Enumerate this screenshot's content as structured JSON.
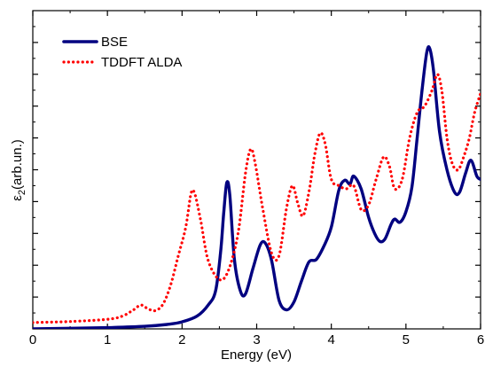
{
  "chart_data": {
    "type": "line",
    "xlabel": "Energy (eV)",
    "ylabel_symbol": "ε",
    "ylabel_subscript": "2",
    "ylabel_text": "(arb.un.)",
    "xlim": [
      0,
      6
    ],
    "ylim": [
      0,
      1
    ],
    "x_ticks": [
      0,
      1,
      2,
      3,
      4,
      5,
      6
    ],
    "x_tick_labels": [
      "0",
      "1",
      "2",
      "3",
      "4",
      "5",
      "6"
    ],
    "grid": false,
    "legend_position": "top-left",
    "series": [
      {
        "name": "BSE",
        "color": "#000080",
        "style": "solid",
        "points": [
          [
            0.0,
            0.0
          ],
          [
            0.5,
            0.002
          ],
          [
            1.0,
            0.004
          ],
          [
            1.5,
            0.008
          ],
          [
            1.8,
            0.014
          ],
          [
            2.0,
            0.022
          ],
          [
            2.2,
            0.04
          ],
          [
            2.35,
            0.075
          ],
          [
            2.45,
            0.12
          ],
          [
            2.52,
            0.25
          ],
          [
            2.56,
            0.37
          ],
          [
            2.6,
            0.46
          ],
          [
            2.64,
            0.42
          ],
          [
            2.7,
            0.22
          ],
          [
            2.78,
            0.12
          ],
          [
            2.85,
            0.11
          ],
          [
            2.95,
            0.19
          ],
          [
            3.05,
            0.265
          ],
          [
            3.12,
            0.268
          ],
          [
            3.2,
            0.215
          ],
          [
            3.3,
            0.09
          ],
          [
            3.4,
            0.06
          ],
          [
            3.5,
            0.085
          ],
          [
            3.6,
            0.15
          ],
          [
            3.7,
            0.21
          ],
          [
            3.8,
            0.218
          ],
          [
            3.9,
            0.26
          ],
          [
            4.0,
            0.32
          ],
          [
            4.1,
            0.435
          ],
          [
            4.18,
            0.467
          ],
          [
            4.25,
            0.455
          ],
          [
            4.3,
            0.48
          ],
          [
            4.4,
            0.44
          ],
          [
            4.5,
            0.35
          ],
          [
            4.58,
            0.3
          ],
          [
            4.65,
            0.275
          ],
          [
            4.72,
            0.283
          ],
          [
            4.8,
            0.328
          ],
          [
            4.85,
            0.345
          ],
          [
            4.92,
            0.335
          ],
          [
            5.0,
            0.368
          ],
          [
            5.08,
            0.446
          ],
          [
            5.15,
            0.6
          ],
          [
            5.22,
            0.76
          ],
          [
            5.28,
            0.87
          ],
          [
            5.32,
            0.88
          ],
          [
            5.37,
            0.81
          ],
          [
            5.45,
            0.62
          ],
          [
            5.55,
            0.5
          ],
          [
            5.65,
            0.43
          ],
          [
            5.72,
            0.43
          ],
          [
            5.8,
            0.49
          ],
          [
            5.87,
            0.53
          ],
          [
            5.95,
            0.48
          ],
          [
            6.0,
            0.47
          ]
        ]
      },
      {
        "name": "TDDFT ALDA",
        "color": "#ff0000",
        "style": "dotted",
        "points": [
          [
            0.0,
            0.02
          ],
          [
            0.5,
            0.023
          ],
          [
            1.0,
            0.03
          ],
          [
            1.2,
            0.04
          ],
          [
            1.35,
            0.06
          ],
          [
            1.45,
            0.075
          ],
          [
            1.55,
            0.062
          ],
          [
            1.65,
            0.058
          ],
          [
            1.75,
            0.08
          ],
          [
            1.85,
            0.14
          ],
          [
            1.95,
            0.23
          ],
          [
            2.05,
            0.32
          ],
          [
            2.12,
            0.425
          ],
          [
            2.17,
            0.425
          ],
          [
            2.25,
            0.34
          ],
          [
            2.35,
            0.215
          ],
          [
            2.5,
            0.155
          ],
          [
            2.62,
            0.183
          ],
          [
            2.75,
            0.3
          ],
          [
            2.85,
            0.49
          ],
          [
            2.92,
            0.565
          ],
          [
            2.98,
            0.52
          ],
          [
            3.08,
            0.38
          ],
          [
            3.2,
            0.238
          ],
          [
            3.3,
            0.23
          ],
          [
            3.4,
            0.38
          ],
          [
            3.48,
            0.45
          ],
          [
            3.55,
            0.395
          ],
          [
            3.62,
            0.355
          ],
          [
            3.7,
            0.43
          ],
          [
            3.78,
            0.55
          ],
          [
            3.85,
            0.615
          ],
          [
            3.92,
            0.58
          ],
          [
            4.0,
            0.47
          ],
          [
            4.1,
            0.45
          ],
          [
            4.2,
            0.44
          ],
          [
            4.3,
            0.45
          ],
          [
            4.4,
            0.375
          ],
          [
            4.5,
            0.39
          ],
          [
            4.6,
            0.47
          ],
          [
            4.7,
            0.54
          ],
          [
            4.78,
            0.51
          ],
          [
            4.85,
            0.44
          ],
          [
            4.95,
            0.47
          ],
          [
            5.05,
            0.6
          ],
          [
            5.15,
            0.68
          ],
          [
            5.25,
            0.7
          ],
          [
            5.35,
            0.75
          ],
          [
            5.42,
            0.8
          ],
          [
            5.48,
            0.75
          ],
          [
            5.55,
            0.6
          ],
          [
            5.62,
            0.52
          ],
          [
            5.7,
            0.5
          ],
          [
            5.78,
            0.545
          ],
          [
            5.85,
            0.6
          ],
          [
            5.92,
            0.68
          ],
          [
            6.0,
            0.74
          ]
        ]
      }
    ]
  }
}
